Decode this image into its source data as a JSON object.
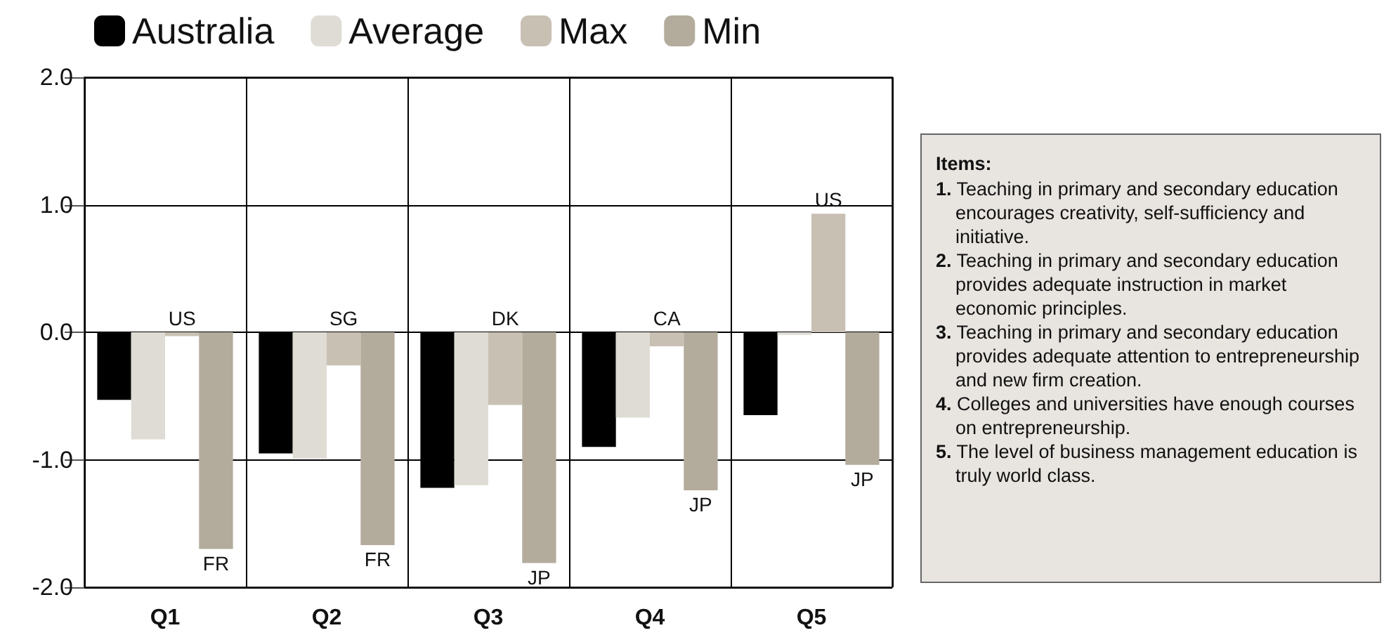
{
  "chart_data": {
    "type": "bar",
    "categories": [
      "Q1",
      "Q2",
      "Q3",
      "Q4",
      "Q5"
    ],
    "series": [
      {
        "name": "Australia",
        "color": "#000000",
        "values": [
          -0.53,
          -0.95,
          -1.22,
          -0.9,
          -0.65
        ]
      },
      {
        "name": "Average",
        "color": "#dfdcd5",
        "values": [
          -0.84,
          -0.99,
          -1.2,
          -0.67,
          -0.02
        ]
      },
      {
        "name": "Max",
        "color": "#c8c0b3",
        "values": [
          -0.03,
          -0.26,
          -0.57,
          -0.11,
          0.93
        ],
        "value_labels": [
          "US",
          "SG",
          "DK",
          "CA",
          "US"
        ]
      },
      {
        "name": "Min",
        "color": "#b3ab9c",
        "values": [
          -1.7,
          -1.67,
          -1.81,
          -1.24,
          -1.04
        ],
        "value_labels": [
          "FR",
          "FR",
          "JP",
          "JP",
          "JP"
        ]
      }
    ],
    "ylim": [
      -2,
      2
    ],
    "yticks": [
      {
        "value": -2,
        "label": "-2.0"
      },
      {
        "value": -1,
        "label": "-1.0"
      },
      {
        "value": 0,
        "label": "0.0"
      },
      {
        "value": 1,
        "label": "1.0"
      },
      {
        "value": 2,
        "label": "2.0"
      }
    ],
    "grid": true,
    "legend": "top left",
    "annotations": [
      "Items:",
      "1. Teaching in primary and secondary education encourages creativity, self-sufficiency and initiative.",
      "2. Teaching in primary and secondary education provides adequate instruction in market economic principles.",
      "3. Teaching in primary and secondary education provides adequate attention to entrepreneurship and new firm creation.",
      "4. Colleges and universities have enough courses on entrepreneurship.",
      "5. The level of business management education is truly world class."
    ]
  }
}
